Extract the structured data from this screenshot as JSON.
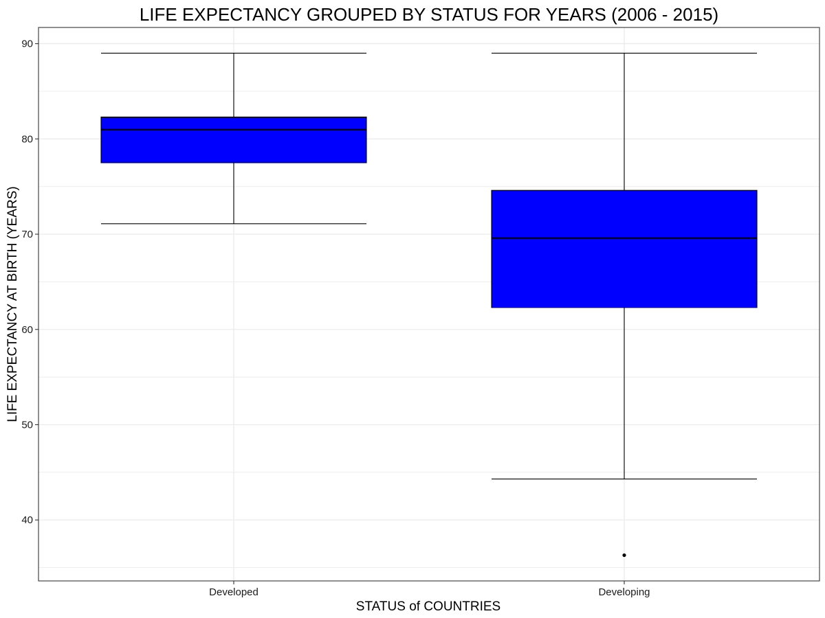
{
  "chart_data": {
    "type": "box",
    "title": "LIFE EXPECTANCY GROUPED BY STATUS FOR YEARS (2006 - 2015)",
    "xlabel": "STATUS of COUNTRIES",
    "ylabel": "LIFE EXPECTANCY AT BIRTH (YEARS)",
    "categories": [
      "Developed",
      "Developing"
    ],
    "ylim": [
      33.6,
      91.7
    ],
    "yticks": [
      40,
      50,
      60,
      70,
      80,
      90
    ],
    "ytick_labels": [
      "40",
      "50",
      "60",
      "70",
      "80",
      "90"
    ],
    "grid": true,
    "legend": "none",
    "box_fill": "#0000ff",
    "line_color": "#000000",
    "grid_color": "#ebebeb",
    "boxes": [
      {
        "category": "Developed",
        "whisker_low": 71.1,
        "q1": 77.5,
        "median": 81.0,
        "q3": 82.3,
        "whisker_high": 89.0,
        "outliers": []
      },
      {
        "category": "Developing",
        "whisker_low": 44.3,
        "q1": 62.3,
        "median": 69.6,
        "q3": 74.6,
        "whisker_high": 89.0,
        "outliers": [
          36.3
        ]
      }
    ]
  }
}
